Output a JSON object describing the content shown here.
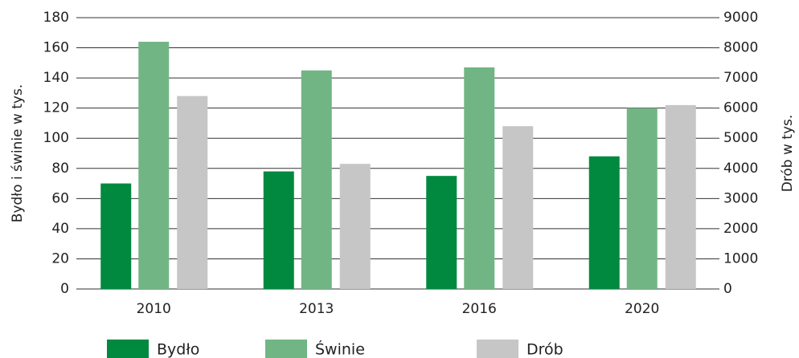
{
  "chart_data": {
    "type": "bar",
    "categories": [
      "2010",
      "2013",
      "2016",
      "2020"
    ],
    "series": [
      {
        "name": "Bydło",
        "color": "#00893f",
        "values": [
          70,
          78,
          75,
          88
        ]
      },
      {
        "name": "Świnie",
        "color": "#72b585",
        "values": [
          164,
          145,
          147,
          120
        ]
      },
      {
        "name": "Drób",
        "color": "#c6c6c6",
        "values": [
          6400,
          4150,
          5400,
          6100
        ],
        "axis": "y2"
      }
    ],
    "ylabel": "Bydło i świnie w tys.",
    "y2label": "Drób w tys.",
    "ylim": [
      0,
      180
    ],
    "yticks": [
      0,
      20,
      40,
      60,
      80,
      100,
      120,
      140,
      160,
      180
    ],
    "y2lim": [
      0,
      9000
    ],
    "y2ticks": [
      0,
      1000,
      2000,
      3000,
      4000,
      5000,
      6000,
      7000,
      8000,
      9000
    ],
    "grid": true,
    "legend": "bottom"
  }
}
